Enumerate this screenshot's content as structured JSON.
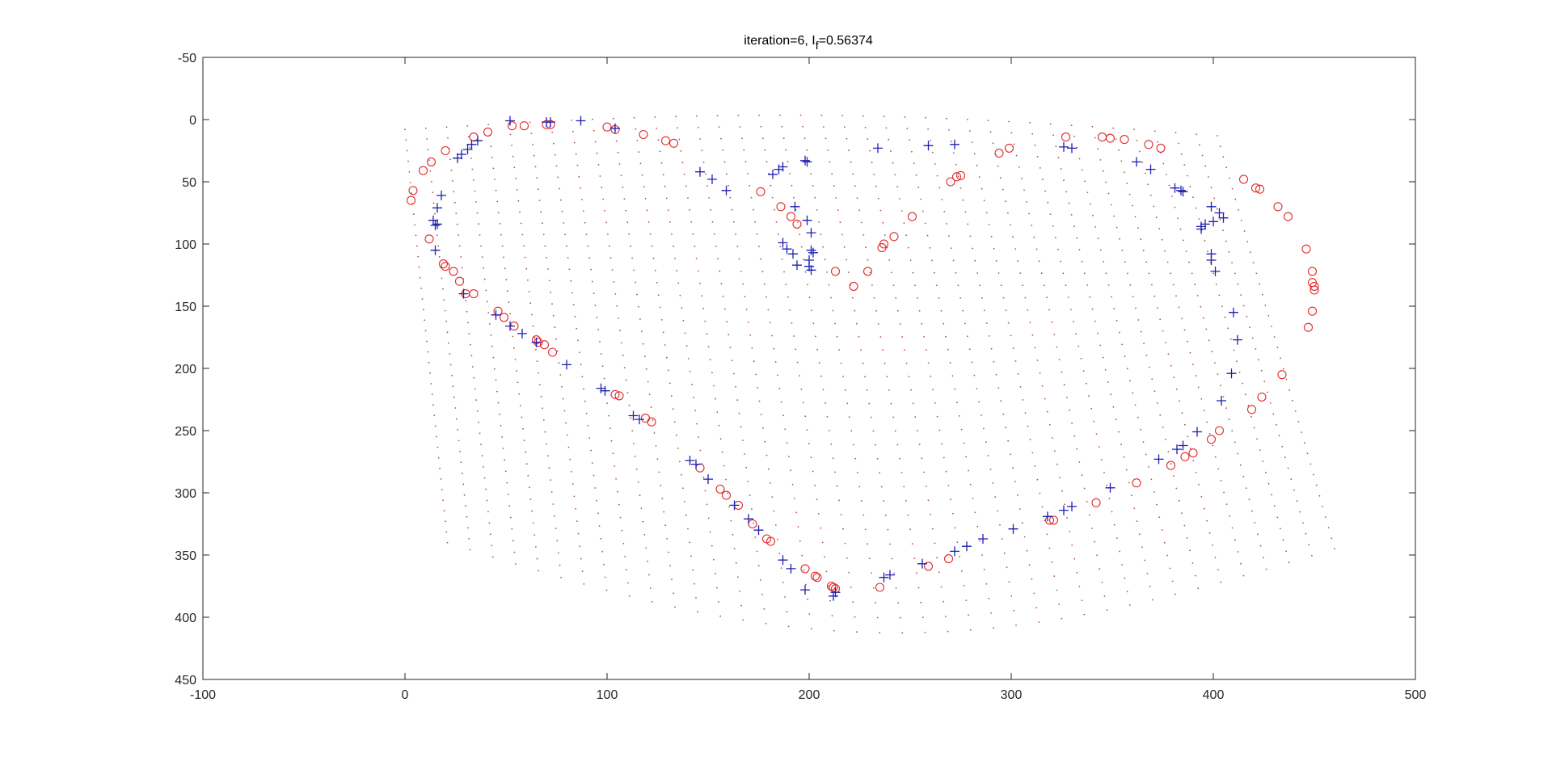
{
  "chart_data": {
    "type": "scatter",
    "title": "iteration=6,  I",
    "title_subscript": "f",
    "title_suffix": "=0.56374",
    "xlim": [
      -100,
      500
    ],
    "ylim": [
      -50,
      450
    ],
    "y_reversed": true,
    "grid": false,
    "x_ticks": [
      -100,
      0,
      100,
      200,
      300,
      400,
      500
    ],
    "y_ticks": [
      -50,
      0,
      50,
      100,
      150,
      200,
      250,
      300,
      350,
      400,
      450
    ],
    "x_tick_labels": [
      "-100",
      "0",
      "100",
      "200",
      "300",
      "400",
      "500"
    ],
    "y_tick_labels": [
      "-50",
      "0",
      "50",
      "100",
      "150",
      "200",
      "250",
      "300",
      "350",
      "400",
      "450"
    ],
    "colors": {
      "circles": "#e32a2a",
      "plus": "#1f1fb0",
      "grid_dots": "#b05050",
      "axis": "#262626"
    },
    "grid_dots": {
      "rows": 40,
      "cols": 40,
      "u_range": [
        0,
        1
      ],
      "v_range": [
        0,
        1
      ]
    },
    "series": [
      {
        "marker": "circle",
        "points": [
          [
            4,
            57
          ],
          [
            3,
            65
          ],
          [
            9,
            41
          ],
          [
            13,
            34
          ],
          [
            20,
            25
          ],
          [
            34,
            14
          ],
          [
            41,
            10
          ],
          [
            53,
            5
          ],
          [
            59,
            5
          ],
          [
            70,
            4
          ],
          [
            72,
            4
          ],
          [
            100,
            6
          ],
          [
            104,
            8
          ],
          [
            118,
            12
          ],
          [
            129,
            17
          ],
          [
            133,
            19
          ],
          [
            12,
            96
          ],
          [
            19,
            116
          ],
          [
            20,
            118
          ],
          [
            24,
            122
          ],
          [
            27,
            130
          ],
          [
            34,
            140
          ],
          [
            30,
            140
          ],
          [
            46,
            154
          ],
          [
            49,
            159
          ],
          [
            54,
            166
          ],
          [
            65,
            177
          ],
          [
            66,
            179
          ],
          [
            69,
            181
          ],
          [
            73,
            187
          ],
          [
            104,
            221
          ],
          [
            106,
            222
          ],
          [
            119,
            240
          ],
          [
            122,
            243
          ],
          [
            146,
            280
          ],
          [
            156,
            297
          ],
          [
            159,
            302
          ],
          [
            165,
            310
          ],
          [
            172,
            325
          ],
          [
            179,
            337
          ],
          [
            181,
            339
          ],
          [
            198,
            361
          ],
          [
            203,
            367
          ],
          [
            204,
            368
          ],
          [
            211,
            375
          ],
          [
            212,
            376
          ],
          [
            213,
            377
          ],
          [
            235,
            376
          ],
          [
            259,
            359
          ],
          [
            269,
            353
          ],
          [
            176,
            58
          ],
          [
            186,
            70
          ],
          [
            191,
            78
          ],
          [
            194,
            84
          ],
          [
            213,
            122
          ],
          [
            222,
            134
          ],
          [
            229,
            122
          ],
          [
            236,
            103
          ],
          [
            237,
            100
          ],
          [
            242,
            94
          ],
          [
            251,
            78
          ],
          [
            270,
            50
          ],
          [
            273,
            46
          ],
          [
            275,
            45
          ],
          [
            294,
            27
          ],
          [
            299,
            23
          ],
          [
            327,
            14
          ],
          [
            345,
            14
          ],
          [
            349,
            15
          ],
          [
            356,
            16
          ],
          [
            368,
            20
          ],
          [
            374,
            23
          ],
          [
            415,
            48
          ],
          [
            421,
            55
          ],
          [
            423,
            56
          ],
          [
            432,
            70
          ],
          [
            437,
            78
          ],
          [
            446,
            104
          ],
          [
            449,
            122
          ],
          [
            449,
            131
          ],
          [
            450,
            134
          ],
          [
            450,
            137
          ],
          [
            449,
            154
          ],
          [
            447,
            167
          ],
          [
            434,
            205
          ],
          [
            424,
            223
          ],
          [
            419,
            233
          ],
          [
            403,
            250
          ],
          [
            399,
            257
          ],
          [
            390,
            268
          ],
          [
            386,
            271
          ],
          [
            379,
            278
          ],
          [
            362,
            292
          ],
          [
            342,
            308
          ],
          [
            319,
            322
          ],
          [
            321,
            322
          ]
        ]
      },
      {
        "marker": "plus",
        "points": [
          [
            52,
            1
          ],
          [
            70,
            2
          ],
          [
            72,
            2
          ],
          [
            87,
            1
          ],
          [
            104,
            7
          ],
          [
            26,
            31
          ],
          [
            28,
            28
          ],
          [
            31,
            24
          ],
          [
            33,
            20
          ],
          [
            36,
            17
          ],
          [
            18,
            61
          ],
          [
            16,
            71
          ],
          [
            14,
            81
          ],
          [
            16,
            84
          ],
          [
            15,
            85
          ],
          [
            15,
            105
          ],
          [
            29,
            140
          ],
          [
            45,
            157
          ],
          [
            52,
            166
          ],
          [
            58,
            172
          ],
          [
            65,
            179
          ],
          [
            80,
            197
          ],
          [
            97,
            216
          ],
          [
            99,
            218
          ],
          [
            113,
            238
          ],
          [
            116,
            241
          ],
          [
            141,
            274
          ],
          [
            144,
            277
          ],
          [
            150,
            289
          ],
          [
            163,
            310
          ],
          [
            170,
            321
          ],
          [
            175,
            330
          ],
          [
            187,
            354
          ],
          [
            191,
            361
          ],
          [
            198,
            378
          ],
          [
            212,
            383
          ],
          [
            213,
            380
          ],
          [
            237,
            368
          ],
          [
            240,
            366
          ],
          [
            256,
            357
          ],
          [
            272,
            347
          ],
          [
            278,
            343
          ],
          [
            286,
            337
          ],
          [
            301,
            329
          ],
          [
            318,
            319
          ],
          [
            326,
            314
          ],
          [
            330,
            311
          ],
          [
            349,
            296
          ],
          [
            146,
            42
          ],
          [
            152,
            48
          ],
          [
            159,
            57
          ],
          [
            182,
            44
          ],
          [
            185,
            40
          ],
          [
            187,
            38
          ],
          [
            198,
            33
          ],
          [
            199,
            34
          ],
          [
            193,
            70
          ],
          [
            199,
            81
          ],
          [
            201,
            91
          ],
          [
            201,
            105
          ],
          [
            202,
            107
          ],
          [
            200,
            113
          ],
          [
            200,
            118
          ],
          [
            201,
            121
          ],
          [
            187,
            99
          ],
          [
            189,
            104
          ],
          [
            192,
            108
          ],
          [
            194,
            117
          ],
          [
            234,
            23
          ],
          [
            259,
            21
          ],
          [
            272,
            20
          ],
          [
            326,
            22
          ],
          [
            330,
            23
          ],
          [
            362,
            34
          ],
          [
            369,
            40
          ],
          [
            381,
            55
          ],
          [
            384,
            57
          ],
          [
            385,
            58
          ],
          [
            399,
            70
          ],
          [
            403,
            75
          ],
          [
            405,
            79
          ],
          [
            400,
            82
          ],
          [
            396,
            84
          ],
          [
            394,
            86
          ],
          [
            394,
            88
          ],
          [
            399,
            108
          ],
          [
            399,
            113
          ],
          [
            401,
            122
          ],
          [
            410,
            155
          ],
          [
            412,
            177
          ],
          [
            409,
            204
          ],
          [
            404,
            226
          ],
          [
            392,
            251
          ],
          [
            385,
            262
          ],
          [
            382,
            265
          ],
          [
            373,
            273
          ]
        ]
      }
    ]
  }
}
